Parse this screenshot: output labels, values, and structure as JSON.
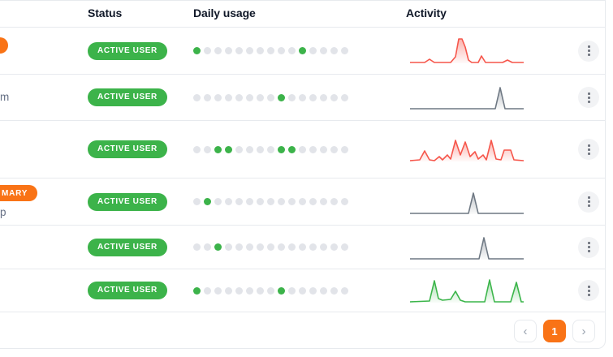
{
  "columns": {
    "status": "Status",
    "usage": "Daily usage",
    "activity": "Activity"
  },
  "colors": {
    "orange": "#f97316",
    "badge_green": "#3cb34a",
    "dot_gray": "#e2e4e9",
    "border": "#e7eaee",
    "spark_red": "#f6564b",
    "spark_gray": "#6e7883",
    "spark_green": "#3bb54a"
  },
  "pagination": {
    "prev_icon": "‹",
    "current_page": "1",
    "next_icon": "›"
  },
  "rows": [
    {
      "left": {
        "badge": {
          "text": "",
          "variant": "sliver"
        },
        "text": ""
      },
      "status": "ACTIVE USER",
      "usage": [
        1,
        0,
        0,
        0,
        0,
        0,
        0,
        0,
        0,
        0,
        1,
        0,
        0,
        0,
        0
      ],
      "activity": {
        "color": "#f6564b",
        "points": [
          [
            0,
            1
          ],
          [
            18,
            1
          ],
          [
            24,
            5
          ],
          [
            30,
            1
          ],
          [
            50,
            1
          ],
          [
            56,
            8
          ],
          [
            60,
            30
          ],
          [
            64,
            30
          ],
          [
            68,
            20
          ],
          [
            72,
            4
          ],
          [
            76,
            1
          ],
          [
            84,
            1
          ],
          [
            88,
            9
          ],
          [
            93,
            1
          ],
          [
            114,
            1
          ],
          [
            120,
            4
          ],
          [
            126,
            1
          ],
          [
            140,
            1
          ]
        ]
      }
    },
    {
      "left": {
        "badge": null,
        "text": "m"
      },
      "status": "ACTIVE USER",
      "usage": [
        0,
        0,
        0,
        0,
        0,
        0,
        0,
        0,
        1,
        0,
        0,
        0,
        0,
        0,
        0
      ],
      "activity": {
        "color": "#6e7883",
        "points": [
          [
            0,
            1
          ],
          [
            105,
            1
          ],
          [
            111,
            27
          ],
          [
            117,
            1
          ],
          [
            140,
            1
          ]
        ]
      }
    },
    {
      "left": {
        "badge": null,
        "text": ""
      },
      "status": "ACTIVE USER",
      "usage": [
        0,
        0,
        1,
        1,
        0,
        0,
        0,
        0,
        1,
        1,
        0,
        0,
        0,
        0,
        0
      ],
      "activity": {
        "color": "#f6564b",
        "points": [
          [
            0,
            1
          ],
          [
            12,
            2
          ],
          [
            18,
            13
          ],
          [
            24,
            2
          ],
          [
            30,
            1
          ],
          [
            36,
            6
          ],
          [
            40,
            2
          ],
          [
            46,
            8
          ],
          [
            50,
            3
          ],
          [
            56,
            26
          ],
          [
            62,
            8
          ],
          [
            68,
            24
          ],
          [
            74,
            6
          ],
          [
            80,
            12
          ],
          [
            84,
            3
          ],
          [
            90,
            8
          ],
          [
            94,
            2
          ],
          [
            100,
            26
          ],
          [
            106,
            3
          ],
          [
            112,
            2
          ],
          [
            116,
            14
          ],
          [
            124,
            14
          ],
          [
            128,
            2
          ],
          [
            140,
            1
          ]
        ]
      }
    },
    {
      "left": {
        "badge": {
          "text": "MARY",
          "variant": "clipped"
        },
        "text": "p"
      },
      "status": "ACTIVE USER",
      "usage": [
        0,
        1,
        0,
        0,
        0,
        0,
        0,
        0,
        0,
        0,
        0,
        0,
        0,
        0,
        0
      ],
      "activity": {
        "color": "#6e7883",
        "points": [
          [
            0,
            1
          ],
          [
            72,
            1
          ],
          [
            78,
            26
          ],
          [
            84,
            1
          ],
          [
            140,
            1
          ]
        ]
      }
    },
    {
      "left": {
        "badge": null,
        "text": ""
      },
      "status": "ACTIVE USER",
      "usage": [
        0,
        0,
        1,
        0,
        0,
        0,
        0,
        0,
        0,
        0,
        0,
        0,
        0,
        0,
        0
      ],
      "activity": {
        "color": "#6e7883",
        "points": [
          [
            0,
            1
          ],
          [
            85,
            1
          ],
          [
            91,
            27
          ],
          [
            97,
            1
          ],
          [
            140,
            1
          ]
        ]
      }
    },
    {
      "left": {
        "badge": null,
        "text": ""
      },
      "status": "ACTIVE USER",
      "usage": [
        1,
        0,
        0,
        0,
        0,
        0,
        0,
        0,
        1,
        0,
        0,
        0,
        0,
        0,
        0
      ],
      "activity": {
        "color": "#3bb54a",
        "points": [
          [
            0,
            1
          ],
          [
            24,
            2
          ],
          [
            30,
            27
          ],
          [
            35,
            5
          ],
          [
            40,
            3
          ],
          [
            50,
            4
          ],
          [
            56,
            14
          ],
          [
            62,
            3
          ],
          [
            68,
            1
          ],
          [
            92,
            1
          ],
          [
            98,
            28
          ],
          [
            104,
            1
          ],
          [
            124,
            1
          ],
          [
            131,
            25
          ],
          [
            137,
            1
          ],
          [
            140,
            1
          ]
        ]
      }
    }
  ]
}
